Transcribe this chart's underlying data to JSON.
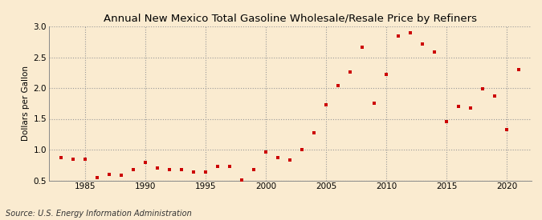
{
  "title": "Annual New Mexico Total Gasoline Wholesale/Resale Price by Refiners",
  "ylabel": "Dollars per Gallon",
  "source": "Source: U.S. Energy Information Administration",
  "background_color": "#faebd0",
  "marker_color": "#cc0000",
  "years": [
    1983,
    1984,
    1985,
    1986,
    1987,
    1988,
    1989,
    1990,
    1991,
    1992,
    1993,
    1994,
    1995,
    1996,
    1997,
    1998,
    1999,
    2000,
    2001,
    2002,
    2003,
    2004,
    2005,
    2006,
    2007,
    2008,
    2009,
    2010,
    2011,
    2012,
    2013,
    2014,
    2015,
    2016,
    2017,
    2018,
    2019,
    2020,
    2021
  ],
  "values": [
    0.87,
    0.85,
    0.85,
    0.54,
    0.6,
    0.58,
    0.68,
    0.79,
    0.7,
    0.68,
    0.67,
    0.63,
    0.63,
    0.73,
    0.73,
    0.51,
    0.67,
    0.96,
    0.87,
    0.83,
    1.0,
    1.27,
    1.73,
    2.04,
    2.26,
    2.66,
    1.75,
    2.22,
    2.84,
    2.89,
    2.72,
    2.58,
    1.45,
    1.7,
    1.67,
    1.99,
    1.87,
    1.33,
    2.3
  ],
  "ylim": [
    0.5,
    3.0
  ],
  "yticks": [
    0.5,
    1.0,
    1.5,
    2.0,
    2.5,
    3.0
  ],
  "xlim": [
    1982,
    2022
  ],
  "xticks": [
    1985,
    1990,
    1995,
    2000,
    2005,
    2010,
    2015,
    2020
  ],
  "title_fontsize": 9.5,
  "label_fontsize": 7.5,
  "tick_fontsize": 7.5,
  "source_fontsize": 7
}
